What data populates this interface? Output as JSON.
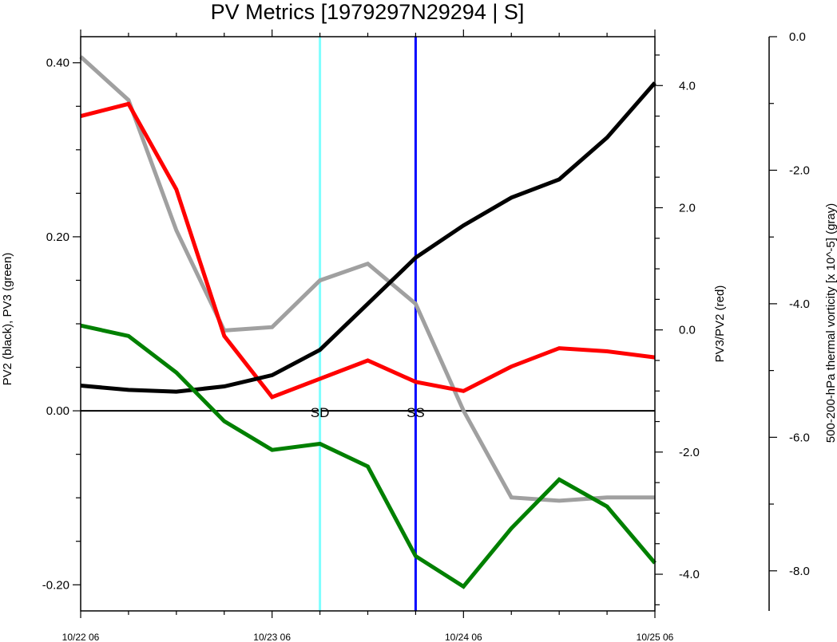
{
  "chart_data": {
    "type": "line",
    "title": "PV Metrics [1979297N29294 | S]",
    "x": [
      0,
      6,
      12,
      18,
      24,
      30,
      36,
      42,
      48,
      54,
      60,
      66,
      72
    ],
    "xticks": [
      {
        "x": 0,
        "label": "10/22 06"
      },
      {
        "x": 24,
        "label": "10/23 06"
      },
      {
        "x": 48,
        "label": "10/24 06"
      },
      {
        "x": 72,
        "label": "10/25 06"
      }
    ],
    "xlim": [
      0,
      72
    ],
    "axes": {
      "left": {
        "label": "PV2 (black), PV3 (green)",
        "range": [
          -0.23,
          0.43
        ],
        "ticks": [
          0.4,
          0.2,
          0.0,
          -0.2
        ],
        "tick_labels": [
          "0.40",
          "0.20",
          "0.00",
          "-0.20"
        ],
        "minor_step": 0.05
      },
      "right": {
        "label": "PV3/PV2 (red)",
        "range": [
          -4.6,
          4.8
        ],
        "ticks": [
          4.0,
          2.0,
          0.0,
          -2.0,
          -4.0
        ],
        "tick_labels": [
          "4.0",
          "2.0",
          "0.0",
          "-2.0",
          "-4.0"
        ],
        "minor_step": 0.5
      },
      "far_right": {
        "label": "500-200-hPa thermal vorticity [x 10^-5] (gray)",
        "range": [
          -8.6,
          0.0
        ],
        "ticks": [
          0.0,
          -2.0,
          -4.0,
          -6.0,
          -8.0
        ],
        "tick_labels": [
          "0.0",
          "-2.0",
          "-4.0",
          "-6.0",
          "-8.0"
        ],
        "minor_step": 1.0
      }
    },
    "series": [
      {
        "name": "PV2",
        "axis": "left",
        "color": "#000000",
        "values": [
          0.029,
          0.024,
          0.022,
          0.028,
          0.041,
          0.07,
          0.123,
          0.176,
          0.213,
          0.245,
          0.266,
          0.314,
          0.377
        ]
      },
      {
        "name": "PV3",
        "axis": "left",
        "color": "#008000",
        "values": [
          0.098,
          0.086,
          0.044,
          -0.012,
          -0.045,
          -0.038,
          -0.064,
          -0.167,
          -0.202,
          -0.135,
          -0.079,
          -0.11,
          -0.175
        ]
      },
      {
        "name": "PV3/PV2",
        "axis": "right",
        "color": "#ff0000",
        "values": [
          3.5,
          3.7,
          2.3,
          -0.1,
          -1.1,
          -0.8,
          -0.5,
          -0.85,
          -1.0,
          -0.6,
          -0.3,
          -0.35,
          -0.45
        ]
      },
      {
        "name": "thermal vorticity",
        "axis": "far_right",
        "color": "#a0a0a0",
        "values": [
          -0.3,
          -0.95,
          -2.9,
          -4.4,
          -4.35,
          -3.65,
          -3.4,
          -4.0,
          -5.6,
          -6.9,
          -6.95,
          -6.9,
          -6.9
        ]
      }
    ],
    "reference_line": {
      "axis": "left",
      "value": 0.0,
      "color": "#000000"
    },
    "vertical_markers": [
      {
        "x": 30,
        "label": "SD",
        "color": "#80ffff"
      },
      {
        "x": 42,
        "label": "SS",
        "color": "#0000ff"
      }
    ],
    "grid": false
  }
}
